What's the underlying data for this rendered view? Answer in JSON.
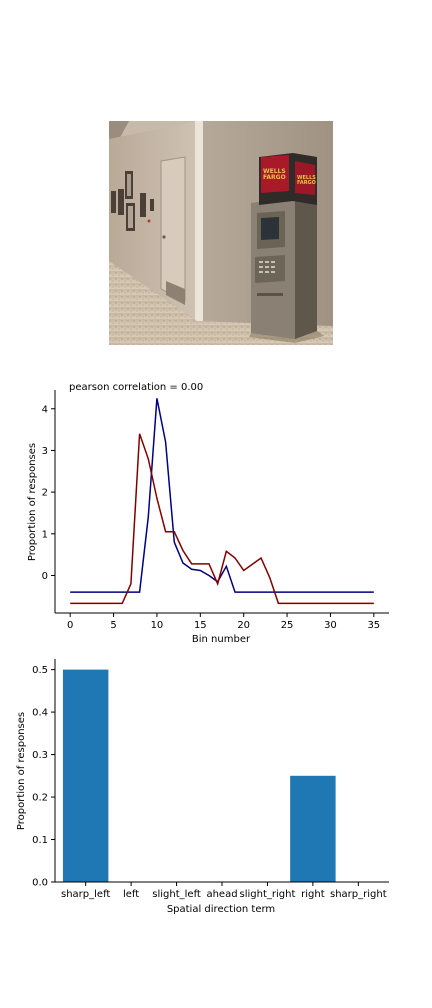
{
  "photo": {
    "atm_sign_left": "WELLS FARGO",
    "atm_sign_right": "WELLS FARGO"
  },
  "chart_data": [
    {
      "type": "line",
      "title": "pearson correlation = 0.00",
      "xlabel": "Bin number",
      "ylabel": "Proportion of responses",
      "xlim": [
        -1.75,
        36.75
      ],
      "ylim": [
        -0.9,
        4.45
      ],
      "xticks": [
        0,
        5,
        10,
        15,
        20,
        25,
        30,
        35
      ],
      "yticks": [
        0,
        1,
        2,
        3,
        4
      ],
      "grid": false,
      "x": [
        0,
        1,
        2,
        3,
        4,
        5,
        6,
        7,
        8,
        9,
        10,
        11,
        12,
        13,
        14,
        15,
        16,
        17,
        18,
        19,
        20,
        21,
        22,
        23,
        24,
        25,
        26,
        27,
        28,
        29,
        30,
        31,
        32,
        33,
        34,
        35
      ],
      "series": [
        {
          "color": "#000080",
          "values": [
            -0.4,
            -0.4,
            -0.4,
            -0.4,
            -0.4,
            -0.4,
            -0.4,
            -0.4,
            -0.4,
            1.4,
            4.25,
            3.2,
            0.8,
            0.3,
            0.15,
            0.12,
            0.0,
            -0.15,
            0.22,
            -0.4,
            -0.4,
            -0.4,
            -0.4,
            -0.4,
            -0.4,
            -0.4,
            -0.4,
            -0.4,
            -0.4,
            -0.4,
            -0.4,
            -0.4,
            -0.4,
            -0.4,
            -0.4,
            -0.4
          ]
        },
        {
          "color": "#800000",
          "values": [
            -0.67,
            -0.67,
            -0.67,
            -0.67,
            -0.67,
            -0.67,
            -0.67,
            -0.2,
            3.4,
            2.8,
            1.85,
            1.05,
            1.05,
            0.6,
            0.28,
            0.28,
            0.28,
            -0.2,
            0.58,
            0.42,
            0.12,
            0.27,
            0.42,
            -0.05,
            -0.67,
            -0.67,
            -0.67,
            -0.67,
            -0.67,
            -0.67,
            -0.67,
            -0.67,
            -0.67,
            -0.67,
            -0.67,
            -0.67
          ]
        }
      ]
    },
    {
      "type": "bar",
      "title": "",
      "xlabel": "Spatial direction term",
      "ylabel": "Proportion of responses",
      "categories": [
        "sharp_left",
        "left",
        "slight_left",
        "ahead",
        "slight_right",
        "right",
        "sharp_right"
      ],
      "values": [
        0.5,
        0.0,
        0.0,
        0.0,
        0.0,
        0.25,
        0.0
      ],
      "ylim": [
        0,
        0.525
      ],
      "yticks": [
        0.0,
        0.1,
        0.2,
        0.3,
        0.4,
        0.5
      ],
      "ytick_labels": [
        "0.0",
        "0.1",
        "0.2",
        "0.3",
        "0.4",
        "0.5"
      ],
      "bar_color": "#1f77b4",
      "grid": false
    }
  ]
}
